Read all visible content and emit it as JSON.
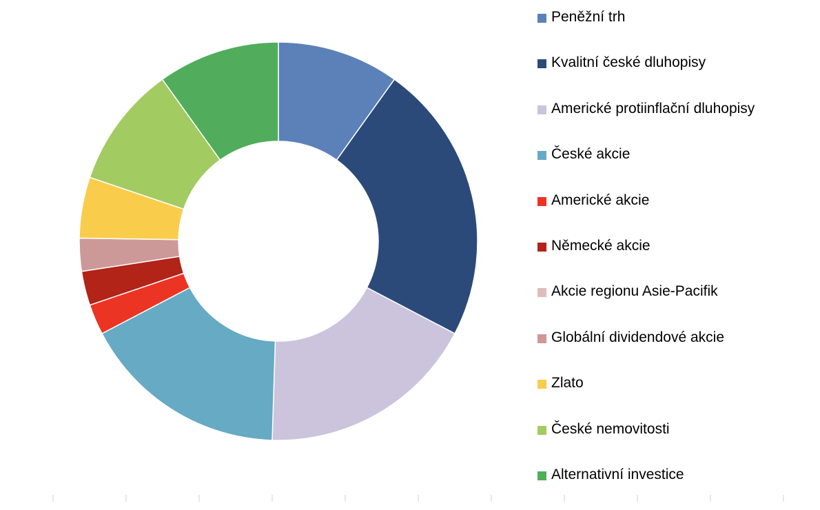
{
  "chart_data": {
    "type": "pie",
    "donut": true,
    "legend_position": "right",
    "categories": [
      "Peněžní trh",
      "Kvalitní české dluhopisy",
      "Americké protiinflační dluhopisy",
      "České akcie",
      "Americké akcie",
      "Německé akcie",
      "Akcie regionu Asie-Pacifik",
      "Globální dividendové akcie",
      "Zlato",
      "České nemovitosti",
      "Alternativní investice"
    ],
    "values": [
      10,
      23,
      18,
      17,
      2.5,
      2.8,
      0,
      2.7,
      5,
      10,
      10
    ],
    "colors": [
      "#5b81b8",
      "#2b4a7a",
      "#cbc4dc",
      "#66aac4",
      "#ec3424",
      "#b22318",
      "#e0bcbb",
      "#cd9998",
      "#f9cd4b",
      "#a2cb62",
      "#51ad5b"
    ]
  }
}
